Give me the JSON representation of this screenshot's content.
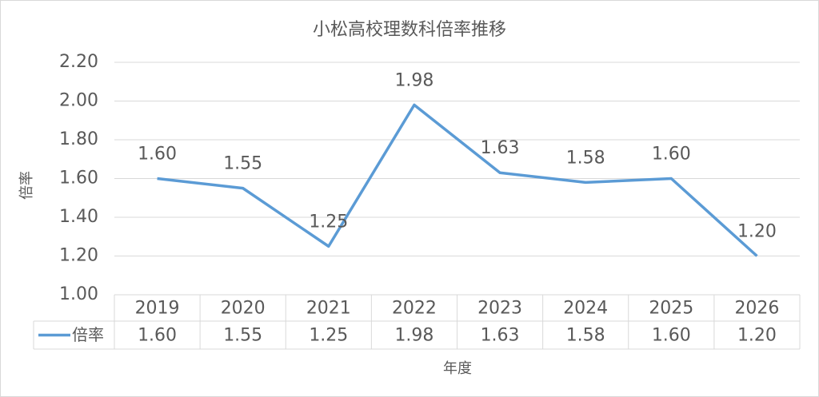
{
  "chart_data": {
    "type": "line",
    "title": "小松高校理数科倍率推移",
    "x_label": "年度",
    "y_label": "倍率",
    "categories": [
      "2019",
      "2020",
      "2021",
      "2022",
      "2023",
      "2024",
      "2025",
      "2026"
    ],
    "series": [
      {
        "name": "倍率",
        "color": "#5b9bd5",
        "values": [
          1.6,
          1.55,
          1.25,
          1.98,
          1.63,
          1.58,
          1.6,
          1.2
        ],
        "value_labels": [
          "1.60",
          "1.55",
          "1.25",
          "1.98",
          "1.63",
          "1.58",
          "1.60",
          "1.20"
        ]
      }
    ],
    "ylim": [
      1.0,
      2.2
    ],
    "yticks": [
      {
        "value": 1.0,
        "label": "1.00"
      },
      {
        "value": 1.2,
        "label": "1.20"
      },
      {
        "value": 1.4,
        "label": "1.40"
      },
      {
        "value": 1.6,
        "label": "1.60"
      },
      {
        "value": 1.8,
        "label": "1.80"
      },
      {
        "value": 2.0,
        "label": "2.00"
      },
      {
        "value": 2.2,
        "label": "2.20"
      }
    ],
    "grid": true,
    "data_table": true
  }
}
